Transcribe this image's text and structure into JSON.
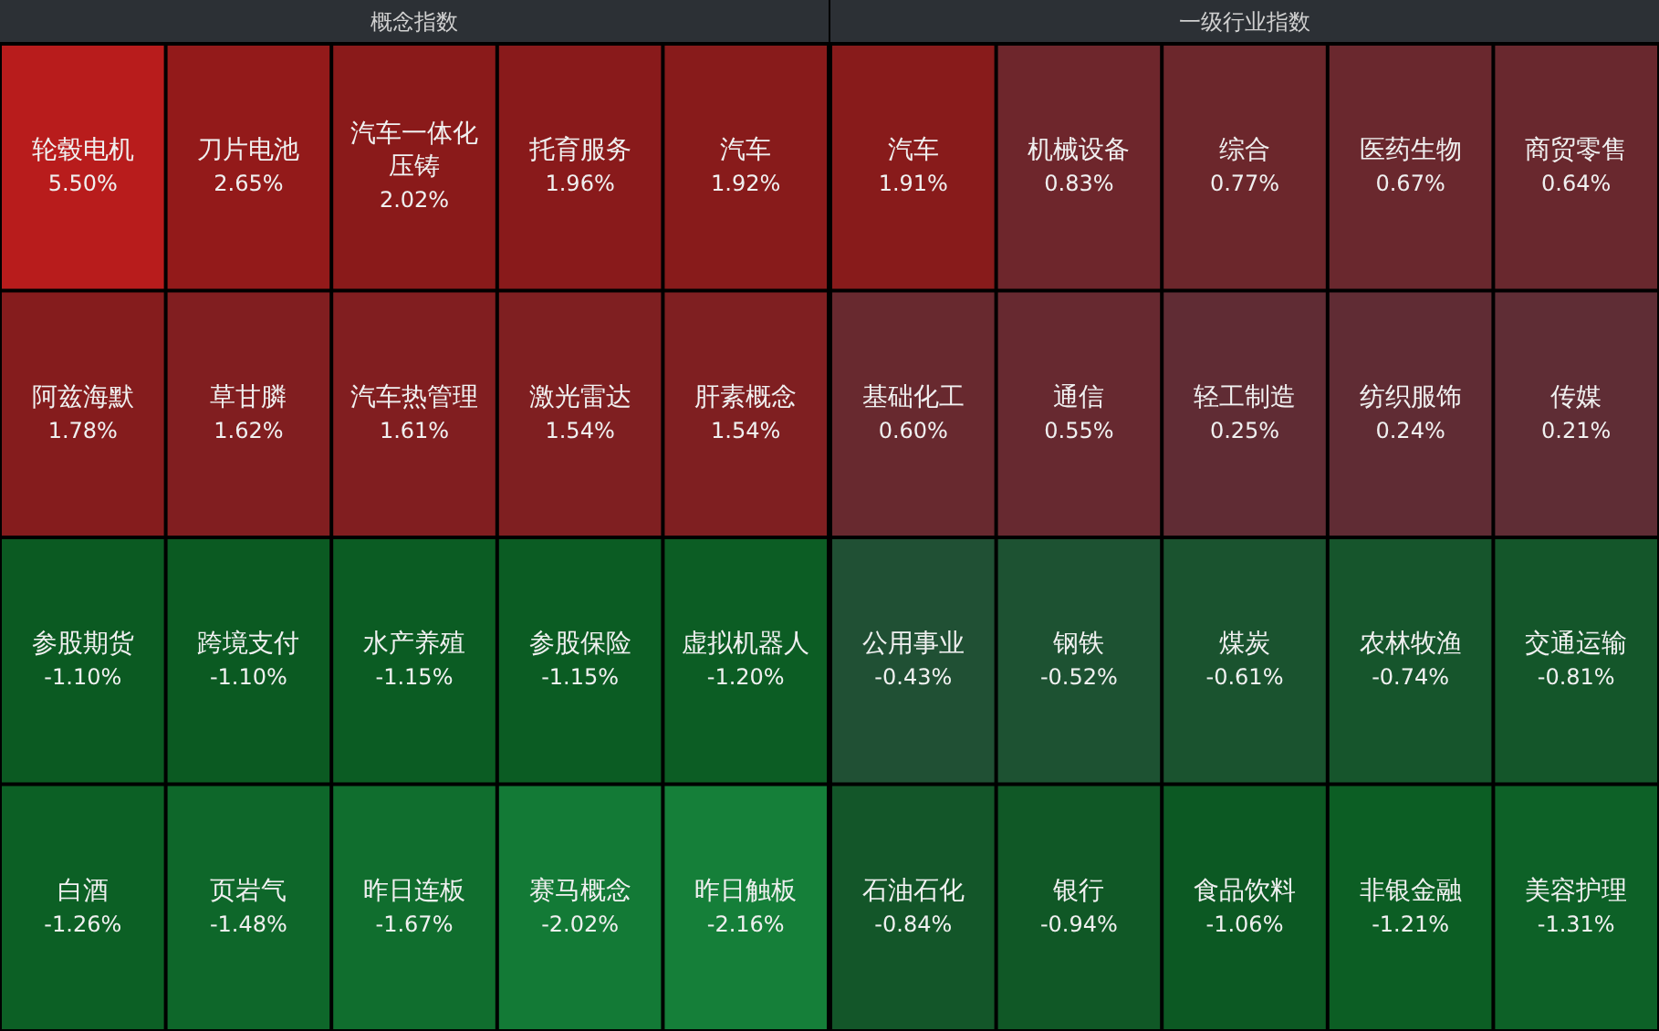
{
  "chart_data": [
    {
      "type": "other",
      "title": "概念指数",
      "categories": [
        "轮毂电机",
        "刀片电池",
        "汽车一体化压铸",
        "托育服务",
        "汽车",
        "阿兹海默",
        "草甘膦",
        "汽车热管理",
        "激光雷达",
        "肝素概念",
        "参股期货",
        "跨境支付",
        "水产养殖",
        "参股保险",
        "虚拟机器人",
        "白酒",
        "页岩气",
        "昨日连板",
        "赛马概念",
        "昨日触板"
      ],
      "values": [
        5.5,
        2.65,
        2.02,
        1.96,
        1.92,
        1.78,
        1.62,
        1.61,
        1.54,
        1.54,
        -1.1,
        -1.1,
        -1.15,
        -1.15,
        -1.2,
        -1.26,
        -1.48,
        -1.67,
        -2.02,
        -2.16
      ],
      "value_labels": [
        "5.50%",
        "2.65%",
        "2.02%",
        "1.96%",
        "1.92%",
        "1.78%",
        "1.62%",
        "1.61%",
        "1.54%",
        "1.54%",
        "-1.10%",
        "-1.10%",
        "-1.15%",
        "-1.15%",
        "-1.20%",
        "-1.26%",
        "-1.48%",
        "-1.67%",
        "-2.02%",
        "-2.16%"
      ]
    },
    {
      "type": "other",
      "title": "一级行业指数",
      "categories": [
        "汽车",
        "机械设备",
        "综合",
        "医药生物",
        "商贸零售",
        "基础化工",
        "通信",
        "轻工制造",
        "纺织服饰",
        "传媒",
        "公用事业",
        "钢铁",
        "煤炭",
        "农林牧渔",
        "交通运输",
        "石油石化",
        "银行",
        "食品饮料",
        "非银金融",
        "美容护理"
      ],
      "values": [
        1.91,
        0.83,
        0.77,
        0.67,
        0.64,
        0.6,
        0.55,
        0.25,
        0.24,
        0.21,
        -0.43,
        -0.52,
        -0.61,
        -0.74,
        -0.81,
        -0.84,
        -0.94,
        -1.06,
        -1.21,
        -1.31
      ],
      "value_labels": [
        "1.91%",
        "0.83%",
        "0.77%",
        "0.67%",
        "0.64%",
        "0.60%",
        "0.55%",
        "0.25%",
        "0.24%",
        "0.21%",
        "-0.43%",
        "-0.52%",
        "-0.61%",
        "-0.74%",
        "-0.81%",
        "-0.84%",
        "-0.94%",
        "-1.06%",
        "-1.21%",
        "-1.31%"
      ]
    }
  ]
}
